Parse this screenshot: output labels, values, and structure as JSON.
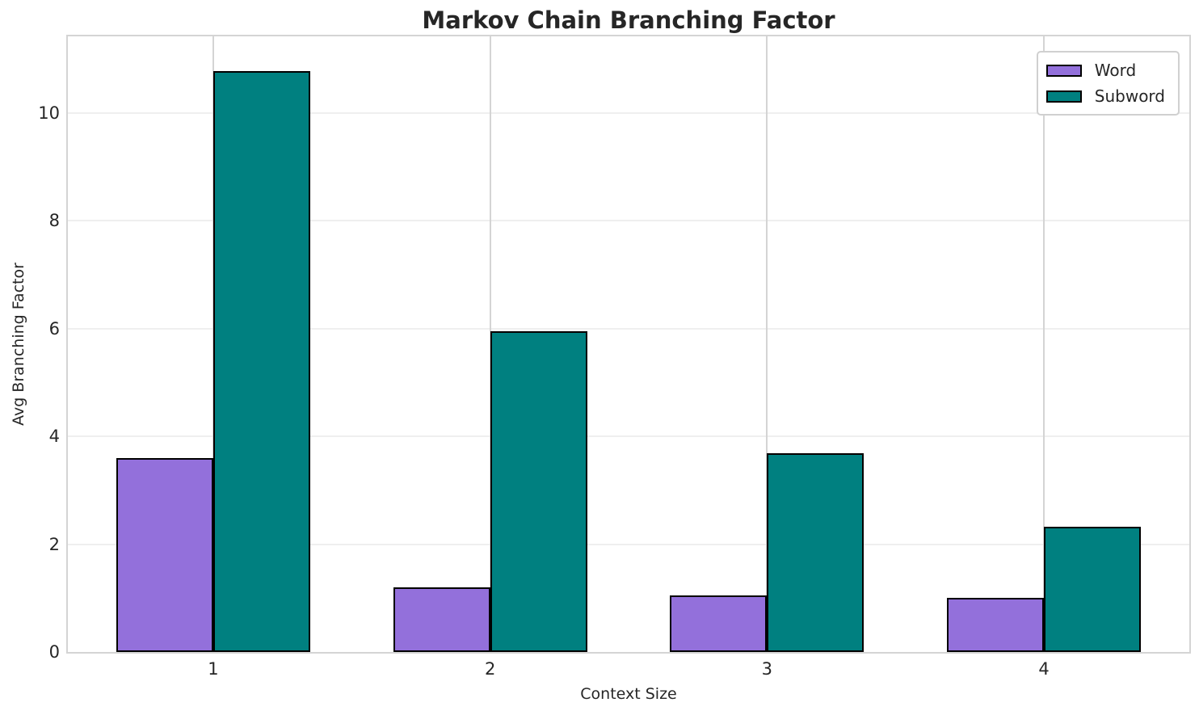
{
  "chart_data": {
    "type": "bar",
    "title": "Markov Chain Branching Factor",
    "xlabel": "Context Size",
    "ylabel": "Avg Branching Factor",
    "categories": [
      "1",
      "2",
      "3",
      "4"
    ],
    "series": [
      {
        "name": "Word",
        "color": "#9370DB",
        "values": [
          3.6,
          1.2,
          1.05,
          1.0
        ]
      },
      {
        "name": "Subword",
        "color": "#008080",
        "values": [
          10.78,
          5.95,
          3.68,
          2.33
        ]
      }
    ],
    "bar_edge_color": "#000000",
    "bar_width": 0.35,
    "yticks": [
      0,
      2,
      4,
      6,
      8,
      10
    ],
    "ylim": [
      0,
      11.42
    ],
    "xlim": [
      0.475,
      4.525
    ],
    "grid": true,
    "legend_position": "upper right"
  }
}
